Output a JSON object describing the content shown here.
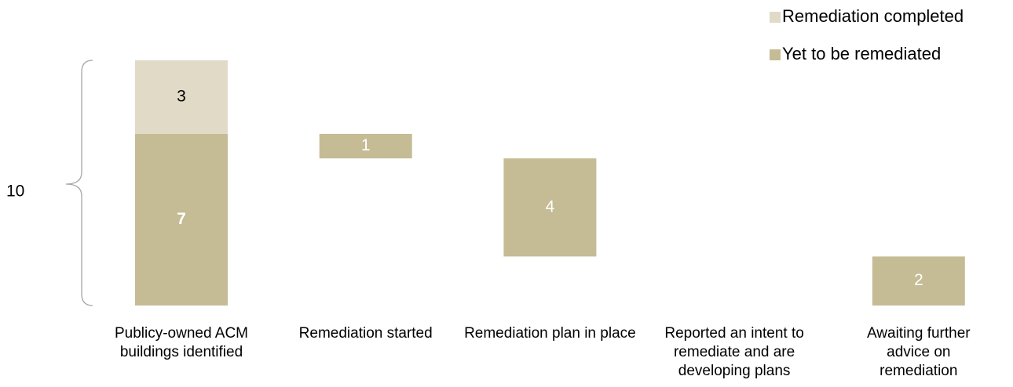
{
  "chart_data": {
    "type": "waterfall",
    "categories": [
      "Publicy-owned ACM buildings identified",
      "Remediation started",
      "Remediation plan in place",
      "Reported an intent to remediate and are developing plans",
      "Awaiting further advice on remediation"
    ],
    "series": [
      {
        "name": "Remediation completed",
        "color": "#e0dac6",
        "values": [
          3,
          null,
          null,
          null,
          null
        ]
      },
      {
        "name": "Yet to be remediated",
        "color": "#c5bc96",
        "values": [
          7,
          1,
          4,
          0,
          2
        ]
      }
    ],
    "total": 10
  }
}
